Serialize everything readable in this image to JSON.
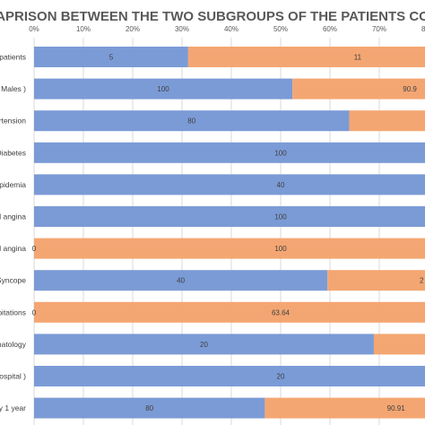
{
  "chart_data": {
    "type": "bar",
    "orientation": "horizontal",
    "stacked": true,
    "title": "APRISON BETWEEN THE TWO SUBGROUPS OF THE PATIENTS CO",
    "xlabel": "",
    "ylabel": "",
    "xlim": [
      0,
      100
    ],
    "x_ticks": [
      "0%",
      "10%",
      "20%",
      "30%",
      "40%",
      "50%",
      "60%",
      "70%",
      "80%"
    ],
    "x_tick_values": [
      0,
      10,
      20,
      30,
      40,
      50,
      60,
      70,
      80
    ],
    "grid": true,
    "legend": "none",
    "categories": [
      "patients",
      "( Males )",
      "rtension",
      "Diabetes",
      "lipidemia",
      "al angina",
      "al angina",
      "/Syncope",
      "pitations",
      "natology",
      "ospital )",
      "y 1 year"
    ],
    "series": [
      {
        "color": "#7b9bd6",
        "values": [
          31.25,
          52.4,
          63.9,
          100,
          100,
          100,
          0,
          59.5,
          0,
          68.9,
          100,
          46.8
        ],
        "labels": [
          "5",
          "100",
          "80",
          "100",
          "40",
          "100",
          "0",
          "40",
          "0",
          "20",
          "20",
          "80"
        ]
      },
      {
        "color": "#f4a672",
        "values": [
          68.75,
          47.6,
          36.1,
          0,
          0,
          0,
          100,
          40.5,
          100,
          31.1,
          0,
          53.2
        ],
        "labels": [
          "11",
          "90.9",
          "",
          "",
          "",
          "",
          "100",
          "2",
          "63.64",
          "",
          "",
          "90.91"
        ]
      }
    ]
  }
}
